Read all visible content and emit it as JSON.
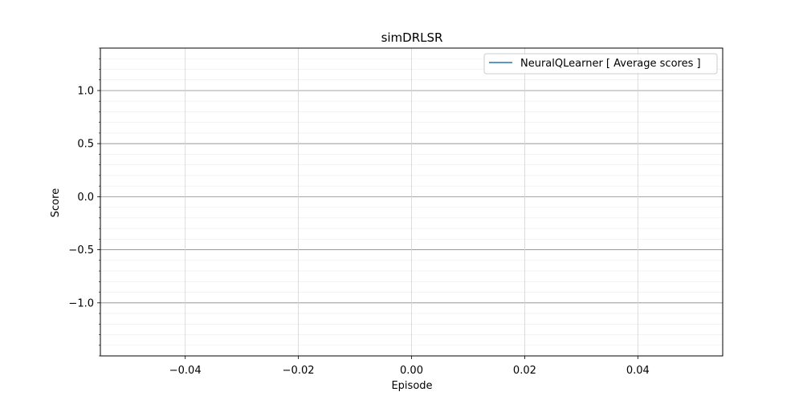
{
  "chart_data": {
    "type": "line",
    "title": "simDRLSR",
    "xlabel": "Episode",
    "ylabel": "Score",
    "xlim": [
      -0.055,
      0.055
    ],
    "ylim": [
      -1.5,
      1.4
    ],
    "x_ticks": [
      {
        "value": -0.04,
        "label": "−0.04"
      },
      {
        "value": -0.02,
        "label": "−0.02"
      },
      {
        "value": 0.0,
        "label": "0.00"
      },
      {
        "value": 0.02,
        "label": "0.02"
      },
      {
        "value": 0.04,
        "label": "0.04"
      }
    ],
    "y_ticks": [
      {
        "value": 1.0,
        "label": "1.0"
      },
      {
        "value": 0.5,
        "label": "0.5"
      },
      {
        "value": 0.0,
        "label": "0.0"
      },
      {
        "value": -0.5,
        "label": "−0.5"
      },
      {
        "value": -1.0,
        "label": "−1.0"
      }
    ],
    "y_minor_step": 0.1,
    "grid": true,
    "legend_position": "top-right",
    "series": [
      {
        "name": "NeuralQLearner [ Average scores ]",
        "color": "#1f77b4",
        "x": [],
        "y": []
      }
    ]
  }
}
